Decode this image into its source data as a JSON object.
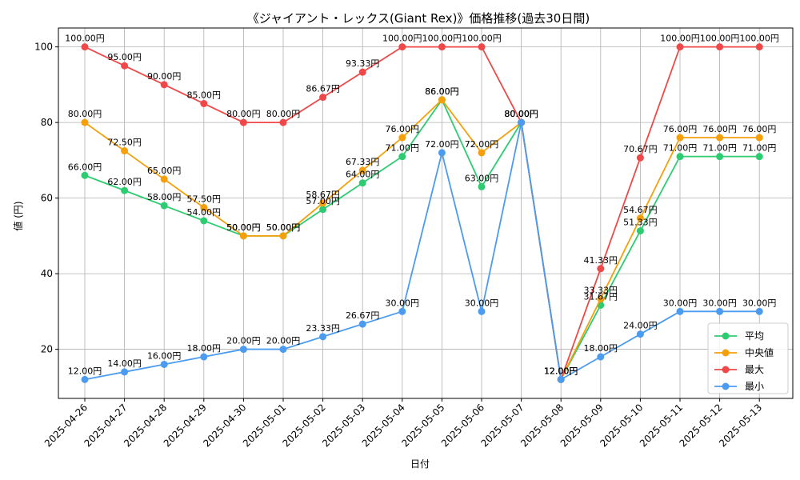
{
  "chart_data": {
    "type": "line",
    "title": "《ジャイアント・レックス(Giant Rex)》価格推移(過去30日間)",
    "xlabel": "日付",
    "ylabel": "値 (円)",
    "ylim": [
      7,
      105
    ],
    "yticks": [
      20,
      40,
      60,
      80,
      100
    ],
    "grid": true,
    "legend_position": "bottom-right",
    "value_suffix": "円",
    "categories": [
      "2025-04-26",
      "2025-04-27",
      "2025-04-28",
      "2025-04-29",
      "2025-04-30",
      "2025-05-01",
      "2025-05-02",
      "2025-05-03",
      "2025-05-04",
      "2025-05-05",
      "2025-05-06",
      "2025-05-07",
      "2025-05-08",
      "2025-05-09",
      "2025-05-10",
      "2025-05-11",
      "2025-05-12",
      "2025-05-13"
    ],
    "series": [
      {
        "name": "平均",
        "color": "#2ecc71",
        "values": [
          66.0,
          62.0,
          58.0,
          54.0,
          50.0,
          50.0,
          57.0,
          64.0,
          71.0,
          86.0,
          63.0,
          80.0,
          12.0,
          31.67,
          51.33,
          71.0,
          71.0,
          71.0
        ]
      },
      {
        "name": "中央値",
        "color": "#f5a00a",
        "values": [
          80.0,
          72.5,
          65.0,
          57.5,
          50.0,
          50.0,
          58.67,
          67.33,
          76.0,
          86.0,
          72.0,
          80.0,
          12.0,
          33.33,
          54.67,
          76.0,
          76.0,
          76.0
        ]
      },
      {
        "name": "最大",
        "color": "#f04848",
        "values": [
          100.0,
          95.0,
          90.0,
          85.0,
          80.0,
          80.0,
          86.67,
          93.33,
          100.0,
          100.0,
          100.0,
          80.0,
          12.0,
          41.33,
          70.67,
          100.0,
          100.0,
          100.0
        ]
      },
      {
        "name": "最小",
        "color": "#4b9bf0",
        "values": [
          12.0,
          14.0,
          16.0,
          18.0,
          20.0,
          20.0,
          23.33,
          26.67,
          30.0,
          72.0,
          30.0,
          80.0,
          12.0,
          18.0,
          24.0,
          30.0,
          30.0,
          30.0
        ]
      }
    ]
  }
}
